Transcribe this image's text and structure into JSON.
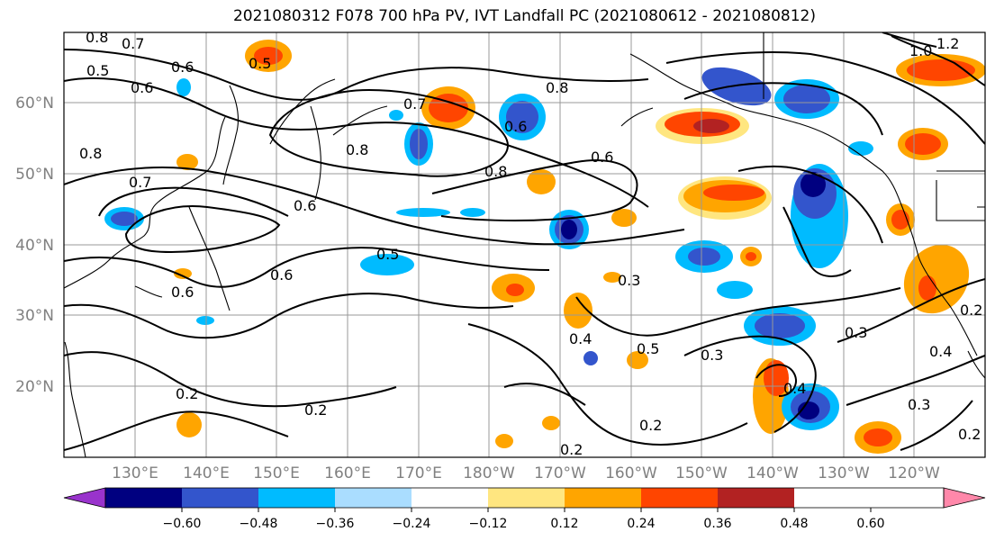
{
  "title": "2021080312 F078 700 hPa PV, IVT Landfall PC (2021080612 - 2021080812)",
  "latitudes": [
    "60°N",
    "50°N",
    "40°N",
    "30°N",
    "20°N"
  ],
  "longitudes": [
    "130°E",
    "140°E",
    "150°E",
    "160°E",
    "170°E",
    "180°W",
    "170°W",
    "160°W",
    "150°W",
    "140°W",
    "130°W",
    "120°W"
  ],
  "colorbar": {
    "ticks": [
      "−0.60",
      "−0.48",
      "−0.36",
      "−0.24",
      "−0.12",
      "0.12",
      "0.24",
      "0.36",
      "0.48",
      "0.60"
    ],
    "colors": [
      "#9933cc",
      "#000080",
      "#3355cc",
      "#00bbff",
      "#aaddff",
      "#ffffff",
      "#ffe680",
      "#ffa500",
      "#ff4500",
      "#b22222",
      "#ff88aa"
    ]
  },
  "contour_labels": [
    {
      "text": "0.8"
    },
    {
      "text": "0.7"
    },
    {
      "text": "0.5"
    },
    {
      "text": "0.6"
    },
    {
      "text": "0.6"
    },
    {
      "text": "0.5"
    },
    {
      "text": "0.8"
    },
    {
      "text": "0.7"
    },
    {
      "text": "0.7"
    },
    {
      "text": "0.6"
    },
    {
      "text": "0.8"
    },
    {
      "text": "0.8"
    },
    {
      "text": "0.6"
    },
    {
      "text": "0.8"
    },
    {
      "text": "0.6"
    },
    {
      "text": "0.6"
    },
    {
      "text": "0.5"
    },
    {
      "text": "0.6"
    },
    {
      "text": "0.3"
    },
    {
      "text": "0.4"
    },
    {
      "text": "0.5"
    },
    {
      "text": "0.3"
    },
    {
      "text": "0.3"
    },
    {
      "text": "0.2"
    },
    {
      "text": "0.2"
    },
    {
      "text": "0.2"
    },
    {
      "text": "0.2"
    },
    {
      "text": "0.4"
    },
    {
      "text": "0.3"
    },
    {
      "text": "0.2"
    },
    {
      "text": "1.0"
    },
    {
      "text": "1.2"
    },
    {
      "text": "0.2"
    },
    {
      "text": "0.4"
    }
  ]
}
